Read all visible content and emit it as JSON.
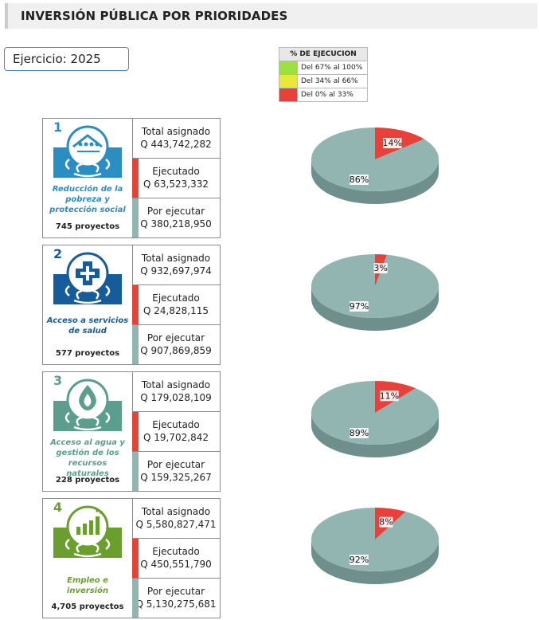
{
  "page": {
    "title": "INVERSIÓN PÚBLICA POR PRIORIDADES",
    "ejercicio": "Ejercicio: 2025"
  },
  "legend": {
    "header": "% DE EJECUCION",
    "items": [
      {
        "label": "Del 67% al 100%",
        "color": "#9ee03c"
      },
      {
        "label": "Del 34% al 66%",
        "color": "#e8e83c"
      },
      {
        "label": "Del 0% al 33%",
        "color": "#e8413a"
      }
    ]
  },
  "cards": [
    {
      "number": "1",
      "color": "#2a8ec3",
      "label": "Reducción de la pobreza y protección social",
      "label_lines": [
        "Reducción de la",
        "pobreza y",
        "protección social"
      ],
      "projects": "745 proyectos",
      "total_label": "Total asignado",
      "total_value": "Q 443,742,282",
      "exec_label": "Ejecutado",
      "exec_value": "Q 63,523,332",
      "pend_label": "Por ejecutar",
      "pend_value": "Q 380,218,950",
      "icon": "family-house-icon"
    },
    {
      "number": "2",
      "color": "#165c9a",
      "label": "Acceso a servicios de salud",
      "label_lines": [
        "Acceso a servicios",
        "de salud"
      ],
      "projects": "577 proyectos",
      "total_label": "Total asignado",
      "total_value": "Q 932,697,974",
      "exec_label": "Ejecutado",
      "exec_value": "Q 24,828,115",
      "pend_label": "Por ejecutar",
      "pend_value": "Q 907,869,859",
      "icon": "health-cross-icon"
    },
    {
      "number": "3",
      "color": "#5c9e8d",
      "label": "Acceso al agua y gestión de los recursos naturales",
      "label_lines": [
        "Acceso al agua y",
        "gestión de los",
        "recursos naturales"
      ],
      "projects": "228 proyectos",
      "total_label": "Total asignado",
      "total_value": "Q 179,028,109",
      "exec_label": "Ejecutado",
      "exec_value": "Q 19,702,842",
      "pend_label": "Por ejecutar",
      "pend_value": "Q 159,325,267",
      "icon": "water-drop-icon"
    },
    {
      "number": "4",
      "color": "#6a9e2d",
      "label": "Empleo e inversión",
      "label_lines": [
        "Empleo e inversión"
      ],
      "projects": "4,705 proyectos",
      "total_label": "Total asignado",
      "total_value": "Q 5,580,827,471",
      "exec_label": "Ejecutado",
      "exec_value": "Q 450,551,790",
      "pend_label": "Por ejecutar",
      "pend_value": "Q 5,130,275,681",
      "icon": "growth-chart-icon"
    }
  ],
  "chart_data": [
    {
      "type": "pie",
      "title": "",
      "labels": [
        "Ejecutado",
        "Por ejecutar"
      ],
      "values": [
        14,
        86
      ],
      "value_labels": [
        "14%",
        "86%"
      ],
      "colors": [
        "#e8413a",
        "#93b5b2"
      ]
    },
    {
      "type": "pie",
      "title": "",
      "labels": [
        "Ejecutado",
        "Por ejecutar"
      ],
      "values": [
        3,
        97
      ],
      "value_labels": [
        "3%",
        "97%"
      ],
      "colors": [
        "#e8413a",
        "#93b5b2"
      ]
    },
    {
      "type": "pie",
      "title": "",
      "labels": [
        "Ejecutado",
        "Por ejecutar"
      ],
      "values": [
        11,
        89
      ],
      "value_labels": [
        "11%",
        "89%"
      ],
      "colors": [
        "#e8413a",
        "#93b5b2"
      ]
    },
    {
      "type": "pie",
      "title": "",
      "labels": [
        "Ejecutado",
        "Por ejecutar"
      ],
      "values": [
        8,
        92
      ],
      "value_labels": [
        "8%",
        "92%"
      ],
      "colors": [
        "#e8413a",
        "#93b5b2"
      ]
    }
  ],
  "colors": {
    "executed": "#e8413a",
    "pending": "#93b5b2",
    "pending_side": "#6f8f8c",
    "executed_side": "#b0302a"
  }
}
